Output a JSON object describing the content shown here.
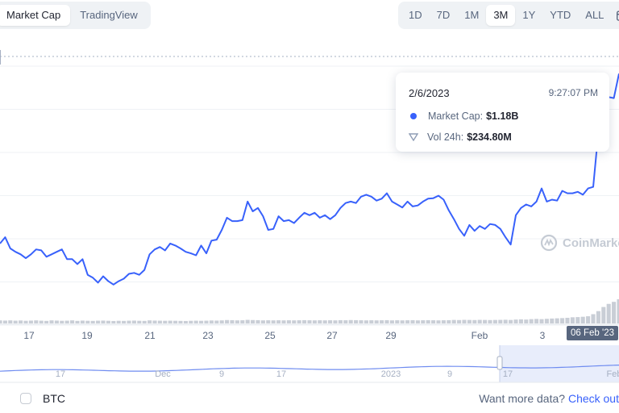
{
  "header": {
    "view_tabs": [
      {
        "label": "Market Cap",
        "active": true
      },
      {
        "label": "TradingView",
        "active": false
      }
    ],
    "ranges": [
      {
        "label": "1D",
        "active": false
      },
      {
        "label": "7D",
        "active": false
      },
      {
        "label": "1M",
        "active": false
      },
      {
        "label": "3M",
        "active": true
      },
      {
        "label": "1Y",
        "active": false
      },
      {
        "label": "YTD",
        "active": false
      },
      {
        "label": "ALL",
        "active": false
      }
    ],
    "calendar_icon": "calendar-icon"
  },
  "tooltip": {
    "date": "2/6/2023",
    "time": "9:27:07 PM",
    "market_cap_label": "Market Cap:",
    "market_cap_value": "$1.18B",
    "volume_label": "Vol 24h:",
    "volume_value": "$234.80M"
  },
  "watermark": "CoinMarke",
  "crosshair_date": "06 Feb '23",
  "navigator": {
    "labels": [
      "17",
      "Dec",
      "9",
      "17",
      "2023",
      "9",
      "17",
      "Feb"
    ]
  },
  "footer": {
    "btc_label": "BTC",
    "btc_checked": false,
    "more_text": "Want more data?",
    "more_link": "Check out"
  },
  "colors": {
    "line": "#3861fb",
    "volume": "#c9ced6",
    "navigator_fill": "#e8edfb",
    "navigator_range": "#dbe3fb"
  },
  "chart_data": {
    "type": "line",
    "x_tick_labels": [
      "17",
      "19",
      "21",
      "23",
      "25",
      "27",
      "29",
      "Feb",
      "3"
    ],
    "series": [
      {
        "name": "Market Cap",
        "values": [
          0.832,
          0.845,
          0.822,
          0.815,
          0.81,
          0.802,
          0.81,
          0.82,
          0.818,
          0.805,
          0.81,
          0.815,
          0.82,
          0.8,
          0.8,
          0.79,
          0.8,
          0.768,
          0.762,
          0.752,
          0.765,
          0.755,
          0.748,
          0.755,
          0.76,
          0.77,
          0.772,
          0.768,
          0.778,
          0.81,
          0.82,
          0.825,
          0.818,
          0.832,
          0.828,
          0.822,
          0.815,
          0.812,
          0.808,
          0.828,
          0.812,
          0.838,
          0.84,
          0.86,
          0.885,
          0.878,
          0.878,
          0.88,
          0.918,
          0.898,
          0.905,
          0.888,
          0.86,
          0.862,
          0.888,
          0.878,
          0.88,
          0.874,
          0.885,
          0.895,
          0.89,
          0.895,
          0.885,
          0.89,
          0.882,
          0.89,
          0.905,
          0.915,
          0.918,
          0.915,
          0.928,
          0.932,
          0.928,
          0.92,
          0.924,
          0.935,
          0.918,
          0.912,
          0.906,
          0.918,
          0.908,
          0.91,
          0.918,
          0.924,
          0.925,
          0.93,
          0.922,
          0.9,
          0.882,
          0.862,
          0.848,
          0.87,
          0.858,
          0.868,
          0.862,
          0.872,
          0.87,
          0.862,
          0.845,
          0.83,
          0.89,
          0.905,
          0.912,
          0.908,
          0.918,
          0.945,
          0.918,
          0.922,
          0.92,
          0.94,
          0.935,
          0.935,
          0.938,
          0.932,
          0.945,
          0.948,
          1.06,
          1.12,
          1.132,
          1.13,
          1.18
        ]
      }
    ],
    "volume": [
      0.3,
      0.28,
      0.3,
      0.27,
      0.29,
      0.26,
      0.28,
      0.3,
      0.27,
      0.25,
      0.3,
      0.28,
      0.26,
      0.27,
      0.3,
      0.25,
      0.28,
      0.26,
      0.25,
      0.27,
      0.28,
      0.26,
      0.24,
      0.26,
      0.25,
      0.27,
      0.28,
      0.26,
      0.25,
      0.3,
      0.28,
      0.27,
      0.26,
      0.27,
      0.26,
      0.25,
      0.24,
      0.26,
      0.27,
      0.26,
      0.27,
      0.29,
      0.28,
      0.3,
      0.33,
      0.32,
      0.3,
      0.31,
      0.35,
      0.33,
      0.32,
      0.3,
      0.31,
      0.3,
      0.31,
      0.3,
      0.31,
      0.3,
      0.31,
      0.32,
      0.31,
      0.3,
      0.31,
      0.3,
      0.31,
      0.3,
      0.32,
      0.31,
      0.33,
      0.32,
      0.31,
      0.3,
      0.31,
      0.3,
      0.31,
      0.32,
      0.3,
      0.31,
      0.3,
      0.31,
      0.32,
      0.3,
      0.31,
      0.32,
      0.31,
      0.3,
      0.31,
      0.32,
      0.34,
      0.33,
      0.35,
      0.34,
      0.33,
      0.35,
      0.34,
      0.33,
      0.34,
      0.35,
      0.36,
      0.34,
      0.38,
      0.4,
      0.38,
      0.42,
      0.44,
      0.42,
      0.45,
      0.48,
      0.5,
      0.52,
      0.55,
      0.6,
      0.62,
      0.65,
      0.7,
      0.9,
      1.2,
      1.6,
      1.9,
      2.1,
      2.35
    ],
    "ylim": [
      0.67,
      1.24
    ],
    "grid": true,
    "legend": "none"
  }
}
